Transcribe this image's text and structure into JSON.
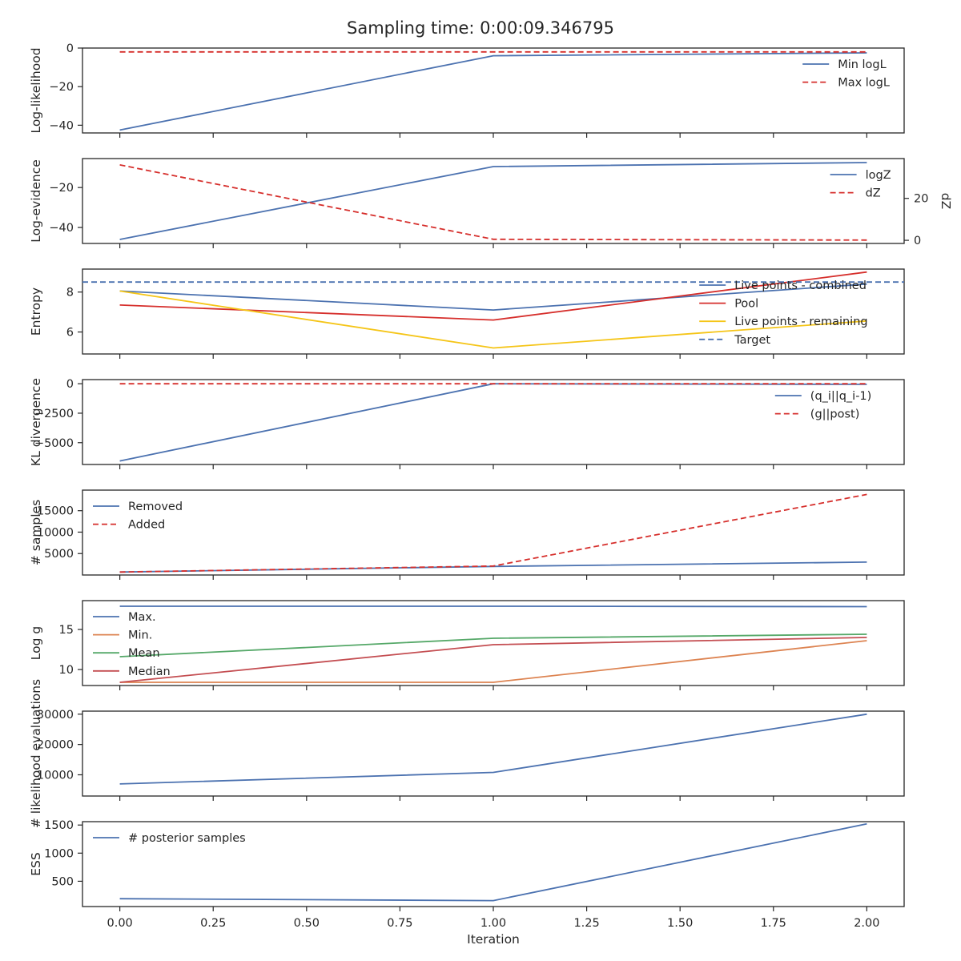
{
  "title": "Sampling time: 0:00:09.346795",
  "colors": {
    "blue": "#4c72b0",
    "red": "#d62f2c",
    "yellow": "#f5c518",
    "orange": "#dd8452",
    "green": "#55a868",
    "crimson": "#c44e52",
    "axis": "#262626"
  },
  "chart_data": [
    {
      "type": "line",
      "ylabel": "Log-likelihood",
      "ylim": [
        -44,
        0
      ],
      "yticks": [
        0,
        -20,
        -40
      ],
      "x": [
        0,
        1,
        2
      ],
      "legend": "right",
      "series": [
        {
          "name": "Min logL",
          "values": [
            -42.5,
            -4.0,
            -2.5
          ],
          "color": "blue",
          "dash": false
        },
        {
          "name": "Max logL",
          "values": [
            -2.0,
            -2.0,
            -2.0
          ],
          "color": "red",
          "dash": true
        }
      ]
    },
    {
      "type": "line",
      "ylabel": "Log-evidence",
      "ylim": [
        -48,
        -5.5
      ],
      "yticks": [
        -20,
        -40
      ],
      "x": [
        0,
        1,
        2
      ],
      "legend": "right",
      "series": [
        {
          "name": "logZ",
          "values": [
            -46.0,
            -9.5,
            -7.5
          ],
          "color": "blue",
          "dash": false,
          "axis": "left"
        },
        {
          "name": "dZ",
          "values": [
            36,
            0.5,
            0.1
          ],
          "color": "red",
          "dash": true,
          "axis": "right"
        }
      ],
      "y2label": "dZ",
      "y2lim": [
        -1.5,
        39
      ],
      "y2ticks": [
        0,
        20
      ]
    },
    {
      "type": "line",
      "ylabel": "Entropy",
      "ylim": [
        4.9,
        9.15
      ],
      "yticks": [
        8,
        6
      ],
      "x": [
        0,
        1,
        2
      ],
      "legend": "right",
      "series": [
        {
          "name": "Live points - combined",
          "values": [
            8.05,
            7.1,
            8.4
          ],
          "color": "blue",
          "dash": false
        },
        {
          "name": "Pool",
          "values": [
            7.35,
            6.6,
            9.0
          ],
          "color": "red",
          "dash": false
        },
        {
          "name": "Live points - remaining",
          "values": [
            8.05,
            5.2,
            6.55
          ],
          "color": "yellow",
          "dash": false
        },
        {
          "name": "Target",
          "hline": 8.5,
          "color": "blue",
          "dash": true
        }
      ]
    },
    {
      "type": "line",
      "ylabel": "KL divergence",
      "ylim": [
        -6850,
        350
      ],
      "yticks": [
        0,
        -2500,
        -5000
      ],
      "x": [
        0,
        1,
        2
      ],
      "legend": "right",
      "series": [
        {
          "name": "(q_i||q_i-1)",
          "values": [
            -6550,
            0,
            -50
          ],
          "color": "blue",
          "dash": false
        },
        {
          "name": "(g||post)",
          "values": [
            0,
            0,
            0
          ],
          "color": "red",
          "dash": true
        }
      ]
    },
    {
      "type": "line",
      "ylabel": "# samples",
      "ylim": [
        0,
        19800
      ],
      "yticks": [
        15000,
        10000,
        5000
      ],
      "x": [
        0,
        1,
        2
      ],
      "legend": "left",
      "series": [
        {
          "name": "Removed",
          "values": [
            700,
            2000,
            3000
          ],
          "color": "blue",
          "dash": false
        },
        {
          "name": "Added",
          "values": [
            700,
            2100,
            18800
          ],
          "color": "red",
          "dash": true
        }
      ]
    },
    {
      "type": "line",
      "ylabel": "Log g",
      "ylim": [
        8.0,
        18.6
      ],
      "yticks": [
        15,
        10
      ],
      "x": [
        0,
        1,
        2
      ],
      "legend": "left",
      "series": [
        {
          "name": "Max.",
          "values": [
            17.9,
            17.9,
            17.85
          ],
          "color": "blue",
          "dash": false
        },
        {
          "name": "Min.",
          "values": [
            8.4,
            8.4,
            13.6
          ],
          "color": "orange",
          "dash": false
        },
        {
          "name": "Mean",
          "values": [
            11.6,
            13.9,
            14.4
          ],
          "color": "green",
          "dash": false
        },
        {
          "name": "Median",
          "values": [
            8.4,
            13.1,
            14.0
          ],
          "color": "crimson",
          "dash": false
        }
      ]
    },
    {
      "type": "line",
      "ylabel": "# likelihood evaluations",
      "ylim": [
        3000,
        31000
      ],
      "yticks": [
        30000,
        20000,
        10000
      ],
      "x": [
        0,
        1,
        2
      ],
      "legend": "none",
      "series": [
        {
          "values": [
            7000,
            10800,
            30000
          ],
          "color": "blue",
          "dash": false
        }
      ]
    },
    {
      "type": "line",
      "ylabel": "ESS",
      "xlabel": "Iteration",
      "ylim": [
        50,
        1560
      ],
      "yticks": [
        1500,
        1000,
        500
      ],
      "x": [
        0,
        1,
        2
      ],
      "xlim": [
        -0.1,
        2.1
      ],
      "xticks": [
        "0.00",
        "0.25",
        "0.50",
        "0.75",
        "1.00",
        "1.25",
        "1.50",
        "1.75",
        "2.00"
      ],
      "legend": "left",
      "series": [
        {
          "name": "# posterior samples",
          "values": [
            190,
            155,
            1520
          ],
          "color": "blue",
          "dash": false
        }
      ]
    }
  ]
}
